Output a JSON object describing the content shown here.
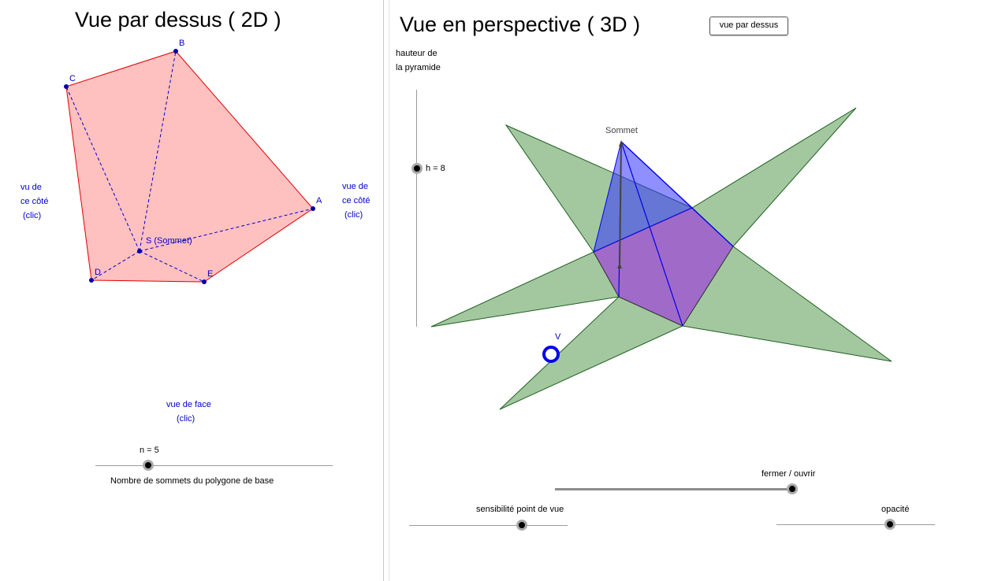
{
  "left": {
    "title": "Vue par dessus ( 2D )",
    "points": {
      "A": "A",
      "B": "B",
      "C": "C",
      "D": "D",
      "E": "E",
      "S": "S (Sommet)"
    },
    "side_left": [
      "vu de",
      "ce côté",
      "(clic)"
    ],
    "side_right": [
      "vue de",
      "ce côté",
      "(clic)"
    ],
    "front": [
      "vue de face",
      "(clic)"
    ],
    "slider_n": {
      "label": "n = 5",
      "value": 5,
      "caption": "Nombre de sommets du polygone de base"
    }
  },
  "right": {
    "title": "Vue en perspective  ( 3D )",
    "top_view_button": "vue par dessus",
    "height_label": [
      "hauteur de",
      "la pyramide"
    ],
    "slider_h": {
      "label": "h = 8",
      "value": 8
    },
    "apex_label": "Sommet",
    "viewpoint_label": "V",
    "slider_open": {
      "label": "fermer / ouvrir"
    },
    "slider_sensitivity": {
      "label": "sensibilité point de vue"
    },
    "slider_opacity": {
      "label": "opacité"
    }
  },
  "colors": {
    "base_fill": "#ffc0c0",
    "base_edge": "#e00000",
    "point_blue": "#0000aa",
    "net_green": "#a3c8a0",
    "pyramid_blue": "#3333ff",
    "base_purple": "#a06ac8"
  }
}
